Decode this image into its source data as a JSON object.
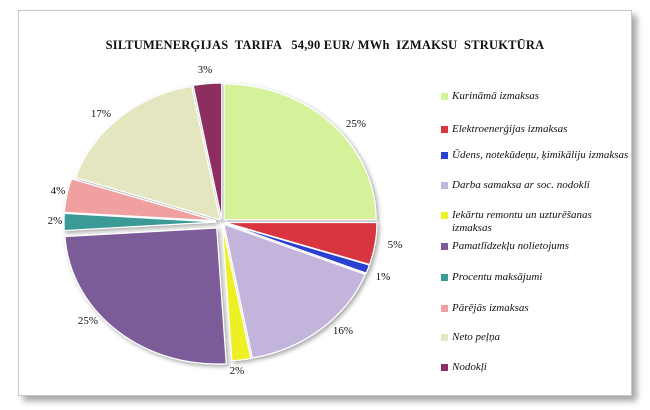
{
  "chart_data": {
    "type": "pie",
    "title": "SILTUMENERĢIJAS  TARIFA   54,90 EUR/ MWh  IZMAKSU  STRUKTŪRA",
    "legend_position": "right",
    "slices": [
      {
        "name": "Kurināmā izmaksas",
        "value": 25,
        "label": "25%",
        "color": "#d5f29a"
      },
      {
        "name": "Elektroenerģijas izmaksas",
        "value": 5,
        "label": "5%",
        "color": "#d9343f"
      },
      {
        "name": "Ūdens, notekūdeņu, ķimikāliju izmaksas",
        "value": 1,
        "label": "1%",
        "color": "#2b3fd0"
      },
      {
        "name": "Darba samaksa ar soc. nodokli",
        "value": 16,
        "label": "16%",
        "color": "#c3b4dc"
      },
      {
        "name": "Iekārtu remontu un uzturēšanas izmaksas",
        "value": 2,
        "label": "2%",
        "color": "#eef028"
      },
      {
        "name": "Pamatlīdzekļu nolietojums",
        "value": 25,
        "label": "25%",
        "color": "#7b5b98"
      },
      {
        "name": "Procentu maksājumi",
        "value": 2,
        "label": "2%",
        "color": "#3a9a96"
      },
      {
        "name": "Pārējās izmaksas",
        "value": 4,
        "label": "4%",
        "color": "#f0a0a0"
      },
      {
        "name": "Neto peļņa",
        "value": 17,
        "label": "17%",
        "color": "#e3e6bf"
      },
      {
        "name": "Nodokļi",
        "value": 3,
        "label": "3%",
        "color": "#8c2f60"
      }
    ]
  }
}
